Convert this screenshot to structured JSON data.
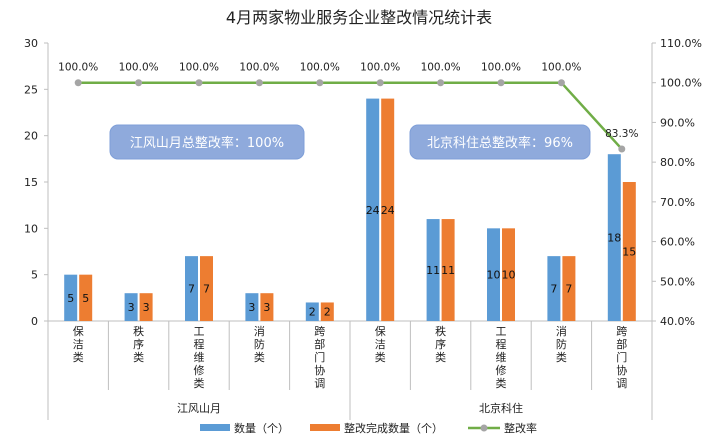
{
  "chart_data": {
    "type": "bar",
    "title": "4月两家物业服务企业整改情况统计表",
    "groups": [
      {
        "name": "江风山月",
        "categories": [
          "保洁类",
          "秩序类",
          "工程维修类",
          "消防类",
          "跨部门协调"
        ]
      },
      {
        "name": "北京科住",
        "categories": [
          "保洁类",
          "秩序类",
          "工程维修类",
          "消防类",
          "跨部门协调"
        ]
      }
    ],
    "series": [
      {
        "name": "数量（个）",
        "type": "bar",
        "color": "#5B9BD5",
        "values": [
          5,
          3,
          7,
          3,
          2,
          24,
          11,
          10,
          7,
          18
        ]
      },
      {
        "name": "整改完成数量（个）",
        "type": "bar",
        "color": "#ED7D31",
        "values": [
          5,
          3,
          7,
          3,
          2,
          24,
          11,
          10,
          7,
          15
        ]
      },
      {
        "name": "整改率",
        "type": "line",
        "color": "#70AD47",
        "axis": "right",
        "values": [
          1.0,
          1.0,
          1.0,
          1.0,
          1.0,
          1.0,
          1.0,
          1.0,
          1.0,
          0.833
        ],
        "labels": [
          "100.0%",
          "100.0%",
          "100.0%",
          "100.0%",
          "100.0%",
          "100.0%",
          "100.0%",
          "100.0%",
          "100.0%",
          "83.3%"
        ]
      }
    ],
    "ylim_left": [
      0,
      30
    ],
    "yticks_left": [
      "0",
      "5",
      "10",
      "15",
      "20",
      "25",
      "30"
    ],
    "ylim_right": [
      0.4,
      1.1
    ],
    "yticks_right": [
      "40.0%",
      "50.0%",
      "60.0%",
      "70.0%",
      "80.0%",
      "90.0%",
      "100.0%",
      "110.0%"
    ],
    "annotations": [
      {
        "text": "江风山月总整改率：100%",
        "color": "#8FAADC"
      },
      {
        "text": "北京科住总整改率：96%",
        "color": "#8FAADC"
      }
    ],
    "legend_position": "bottom",
    "grid": false
  }
}
